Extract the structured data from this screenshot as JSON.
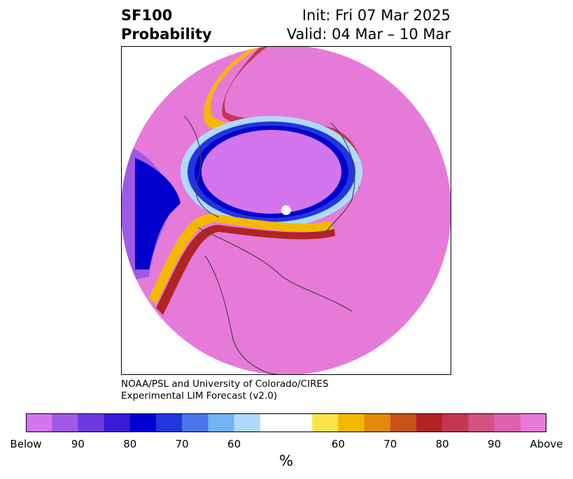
{
  "header": {
    "title_line1": "SF100",
    "title_line2": "Probability",
    "init": "Init: Fri 07 Mar 2025",
    "valid": "Valid: 04 Mar – 10 Mar"
  },
  "credit": {
    "line1": "NOAA/PSL and University of Colorado/CIRES",
    "line2": "Experimental LIM Forecast (v2.0)"
  },
  "colorbar": {
    "colors": [
      "#d376ee",
      "#9f59e6",
      "#6c3adb",
      "#3a1ad5",
      "#0000cc",
      "#2136dc",
      "#4c76e8",
      "#74b2f4",
      "#aedafc",
      "#ffffff",
      "#ffffff",
      "#fee24a",
      "#f5b800",
      "#e28a0e",
      "#c65318",
      "#b02424",
      "#c43752",
      "#d4527e",
      "#dd62ae",
      "#e67ad9"
    ],
    "tick_labels": [
      "Below",
      "90",
      "80",
      "70",
      "60",
      "60",
      "70",
      "80",
      "90",
      "Above"
    ],
    "unit": "%"
  }
}
